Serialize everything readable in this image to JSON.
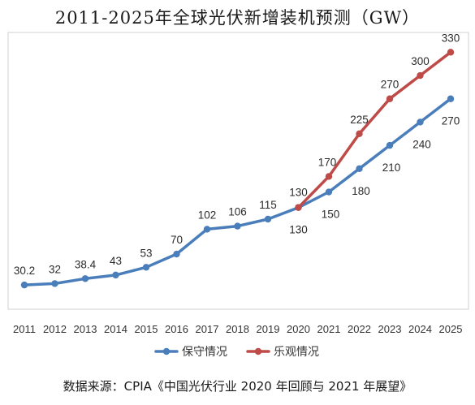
{
  "chart_data": {
    "type": "line",
    "title": "2011-2025年全球光伏新增装机预测（GW）",
    "xlabel": "",
    "ylabel": "",
    "categories": [
      "2011",
      "2012",
      "2013",
      "2014",
      "2015",
      "2016",
      "2017",
      "2018",
      "2019",
      "2020",
      "2021",
      "2022",
      "2023",
      "2024",
      "2025"
    ],
    "ylim": [
      0,
      345
    ],
    "grid": false,
    "legend_position": "bottom",
    "series": [
      {
        "name": "保守情况",
        "color": "#4A7EBB",
        "x": [
          "2011",
          "2012",
          "2013",
          "2014",
          "2015",
          "2016",
          "2017",
          "2018",
          "2019",
          "2020",
          "2021",
          "2022",
          "2023",
          "2024",
          "2025"
        ],
        "values": [
          30.2,
          32,
          38.4,
          43,
          53,
          70,
          102,
          106,
          115,
          130,
          150,
          180,
          210,
          240,
          270
        ],
        "labels": [
          "30.2",
          "32",
          "38.4",
          "43",
          "53",
          "70",
          "102",
          "106",
          "115",
          "130",
          "150",
          "180",
          "210",
          "240",
          "270"
        ]
      },
      {
        "name": "乐观情况",
        "color": "#BE4B48",
        "x": [
          "2020",
          "2021",
          "2022",
          "2023",
          "2024",
          "2025"
        ],
        "values": [
          130,
          170,
          225,
          270,
          300,
          330
        ],
        "labels": [
          "130",
          "170",
          "225",
          "270",
          "300",
          "330"
        ]
      }
    ]
  },
  "source": "数据来源：CPIA《中国光伏行业 2020 年回顾与 2021 年展望》"
}
